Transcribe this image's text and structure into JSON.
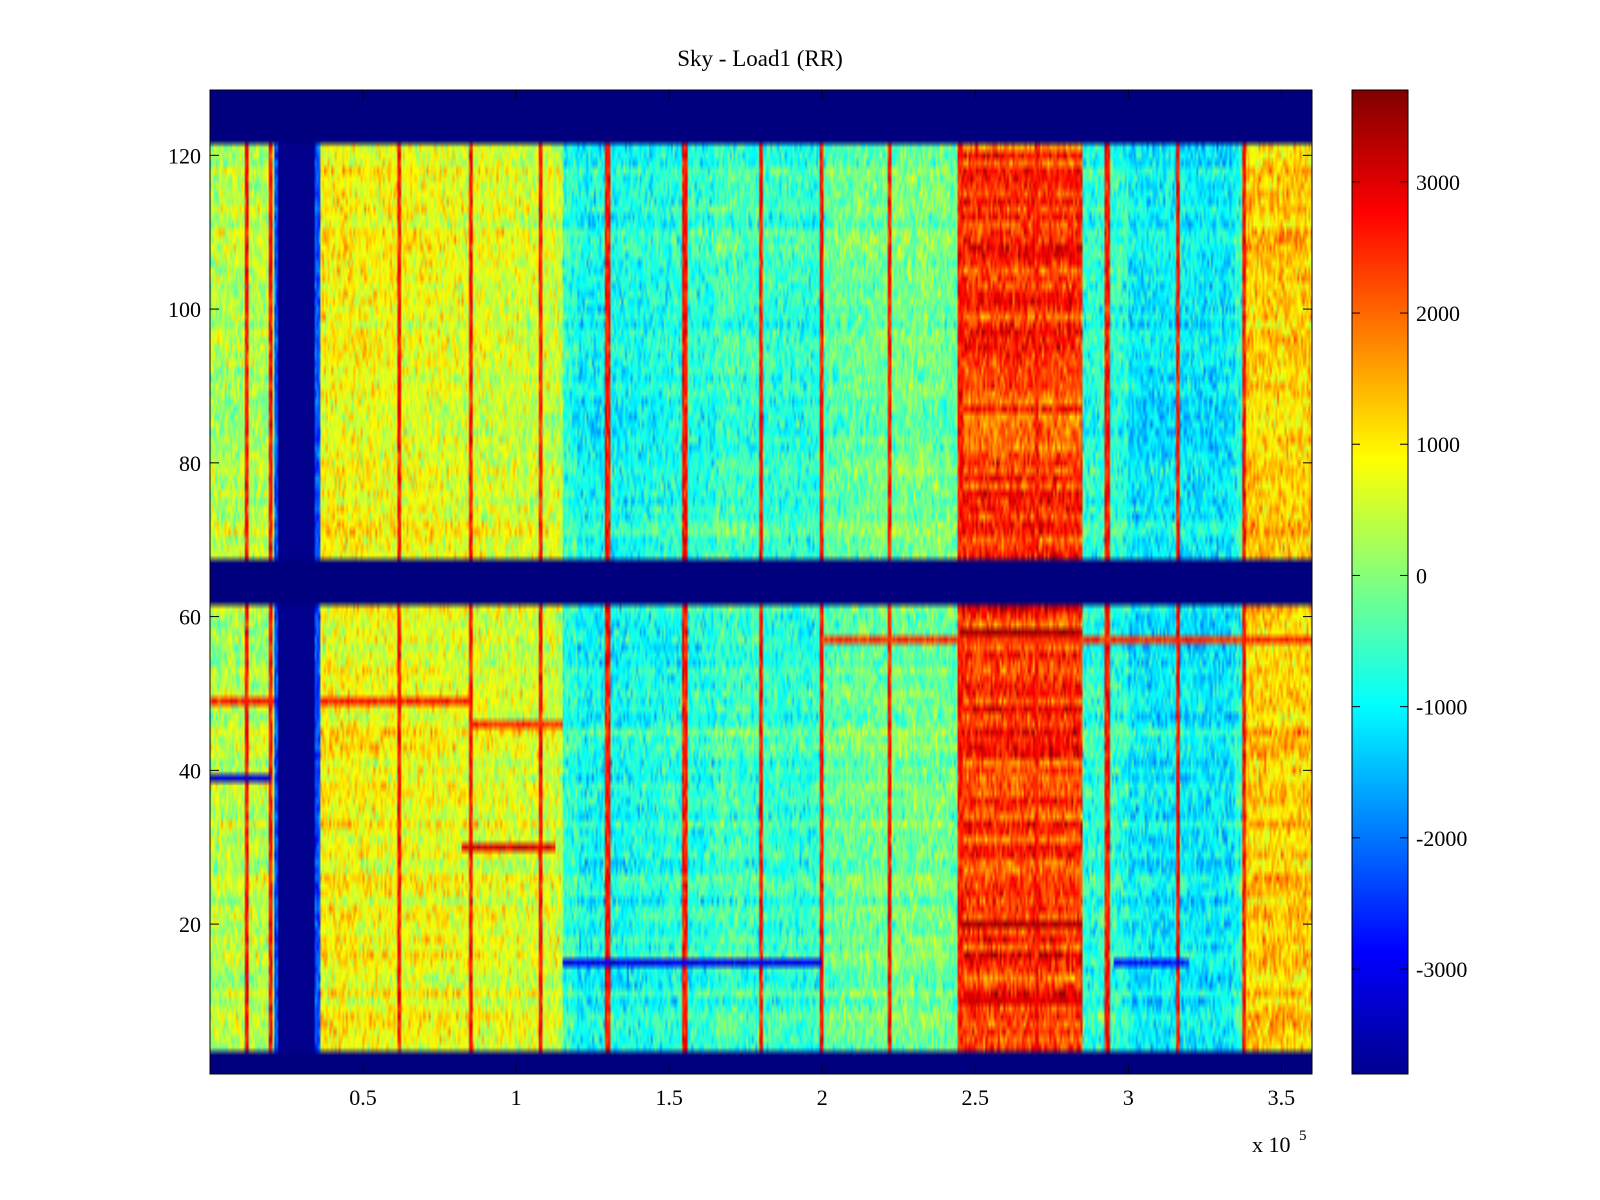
{
  "chart_data": {
    "type": "heatmap",
    "title": "Sky - Load1 (RR)",
    "xlabel": "",
    "ylabel": "",
    "x_exponent_label": "x 10",
    "x_exponent_power": "5",
    "xlim": [
      0,
      3.6
    ],
    "ylim": [
      0.5,
      128.5
    ],
    "x_ticks": [
      0.5,
      1,
      1.5,
      2,
      2.5,
      3,
      3.5
    ],
    "x_tick_labels": [
      "0.5",
      "1",
      "1.5",
      "2",
      "2.5",
      "3",
      "3.5"
    ],
    "y_ticks": [
      20,
      40,
      60,
      80,
      100,
      120
    ],
    "y_tick_labels": [
      "20",
      "40",
      "60",
      "80",
      "100",
      "120"
    ],
    "colormap": "jet",
    "clim": [
      -3800,
      3700
    ],
    "colorbar_ticks": [
      3000,
      2000,
      1000,
      0,
      -1000,
      -2000,
      -3000
    ],
    "colorbar_tick_labels": [
      "3000",
      "2000",
      "1000",
      "0",
      "-1000",
      "-2000",
      "-3000"
    ],
    "flagged_rows": [
      [
        0.5,
        3.5
      ],
      [
        61.5,
        67.5
      ],
      [
        121.5,
        128.5
      ]
    ],
    "flagged_columns": [
      [
        0.21,
        0.36
      ]
    ],
    "hot_region_x": [
      2.45,
      2.85
    ],
    "vertical_streak_x": [
      0.12,
      0.2,
      0.62,
      0.85,
      1.08,
      1.3,
      1.55,
      1.8,
      2.0,
      2.22,
      2.45,
      2.7,
      2.93,
      3.16,
      3.38
    ],
    "horizontal_bands": [
      {
        "y": 49,
        "x": [
          0.0,
          0.85
        ],
        "value": 2600
      },
      {
        "y": 46,
        "x": [
          0.85,
          1.15
        ],
        "value": 2400
      },
      {
        "y": 30,
        "x": [
          0.82,
          1.13
        ],
        "value": 3000
      },
      {
        "y": 39,
        "x": [
          0.0,
          0.2
        ],
        "value": -3200
      },
      {
        "y": 15,
        "x": [
          1.15,
          2.0
        ],
        "value": -3000
      },
      {
        "y": 15,
        "x": [
          2.95,
          3.2
        ],
        "value": -2700
      },
      {
        "y": 57,
        "x": [
          2.0,
          3.6
        ],
        "value": 2400
      },
      {
        "y": 58,
        "x": [
          2.45,
          2.85
        ],
        "value": 3400
      },
      {
        "y": 20,
        "x": [
          2.45,
          2.85
        ],
        "value": 3300
      },
      {
        "y": 10,
        "x": [
          2.45,
          2.85
        ],
        "value": 3000
      }
    ]
  }
}
